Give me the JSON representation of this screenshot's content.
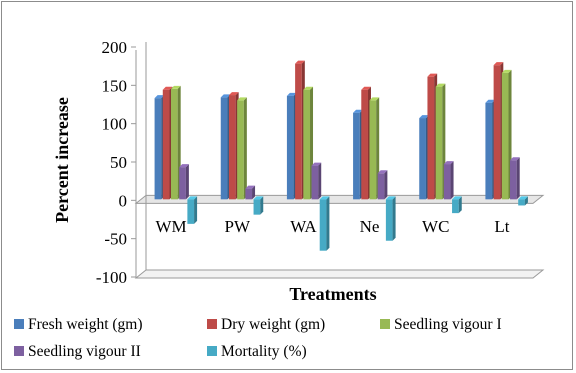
{
  "chart_data": {
    "type": "bar",
    "title": "",
    "xlabel": "Treatments",
    "ylabel": "Percent increase",
    "ylim": [
      -100,
      200
    ],
    "yticks": [
      -100,
      -50,
      0,
      50,
      100,
      150,
      200
    ],
    "categories": [
      "WM",
      "PW",
      "WA",
      "Ne",
      "WC",
      "Lt"
    ],
    "grid": false,
    "legend_position": "bottom",
    "series": [
      {
        "name": "Fresh weight (gm)",
        "color": "#4a7ebb",
        "values": [
          132,
          133,
          135,
          113,
          106,
          126
        ]
      },
      {
        "name": "Dry weight (gm)",
        "color": "#be4b48",
        "values": [
          143,
          136,
          177,
          143,
          160,
          175
        ]
      },
      {
        "name": "Seedling vigour I",
        "color": "#98b954",
        "values": [
          144,
          129,
          143,
          129,
          147,
          165
        ]
      },
      {
        "name": "Seedling vigour II",
        "color": "#7d60a0",
        "values": [
          42,
          14,
          44,
          34,
          46,
          51
        ]
      },
      {
        "name": "Mortality (%)",
        "color": "#46aac5",
        "values": [
          -32,
          -20,
          -67,
          -54,
          -18,
          -8
        ]
      }
    ]
  }
}
